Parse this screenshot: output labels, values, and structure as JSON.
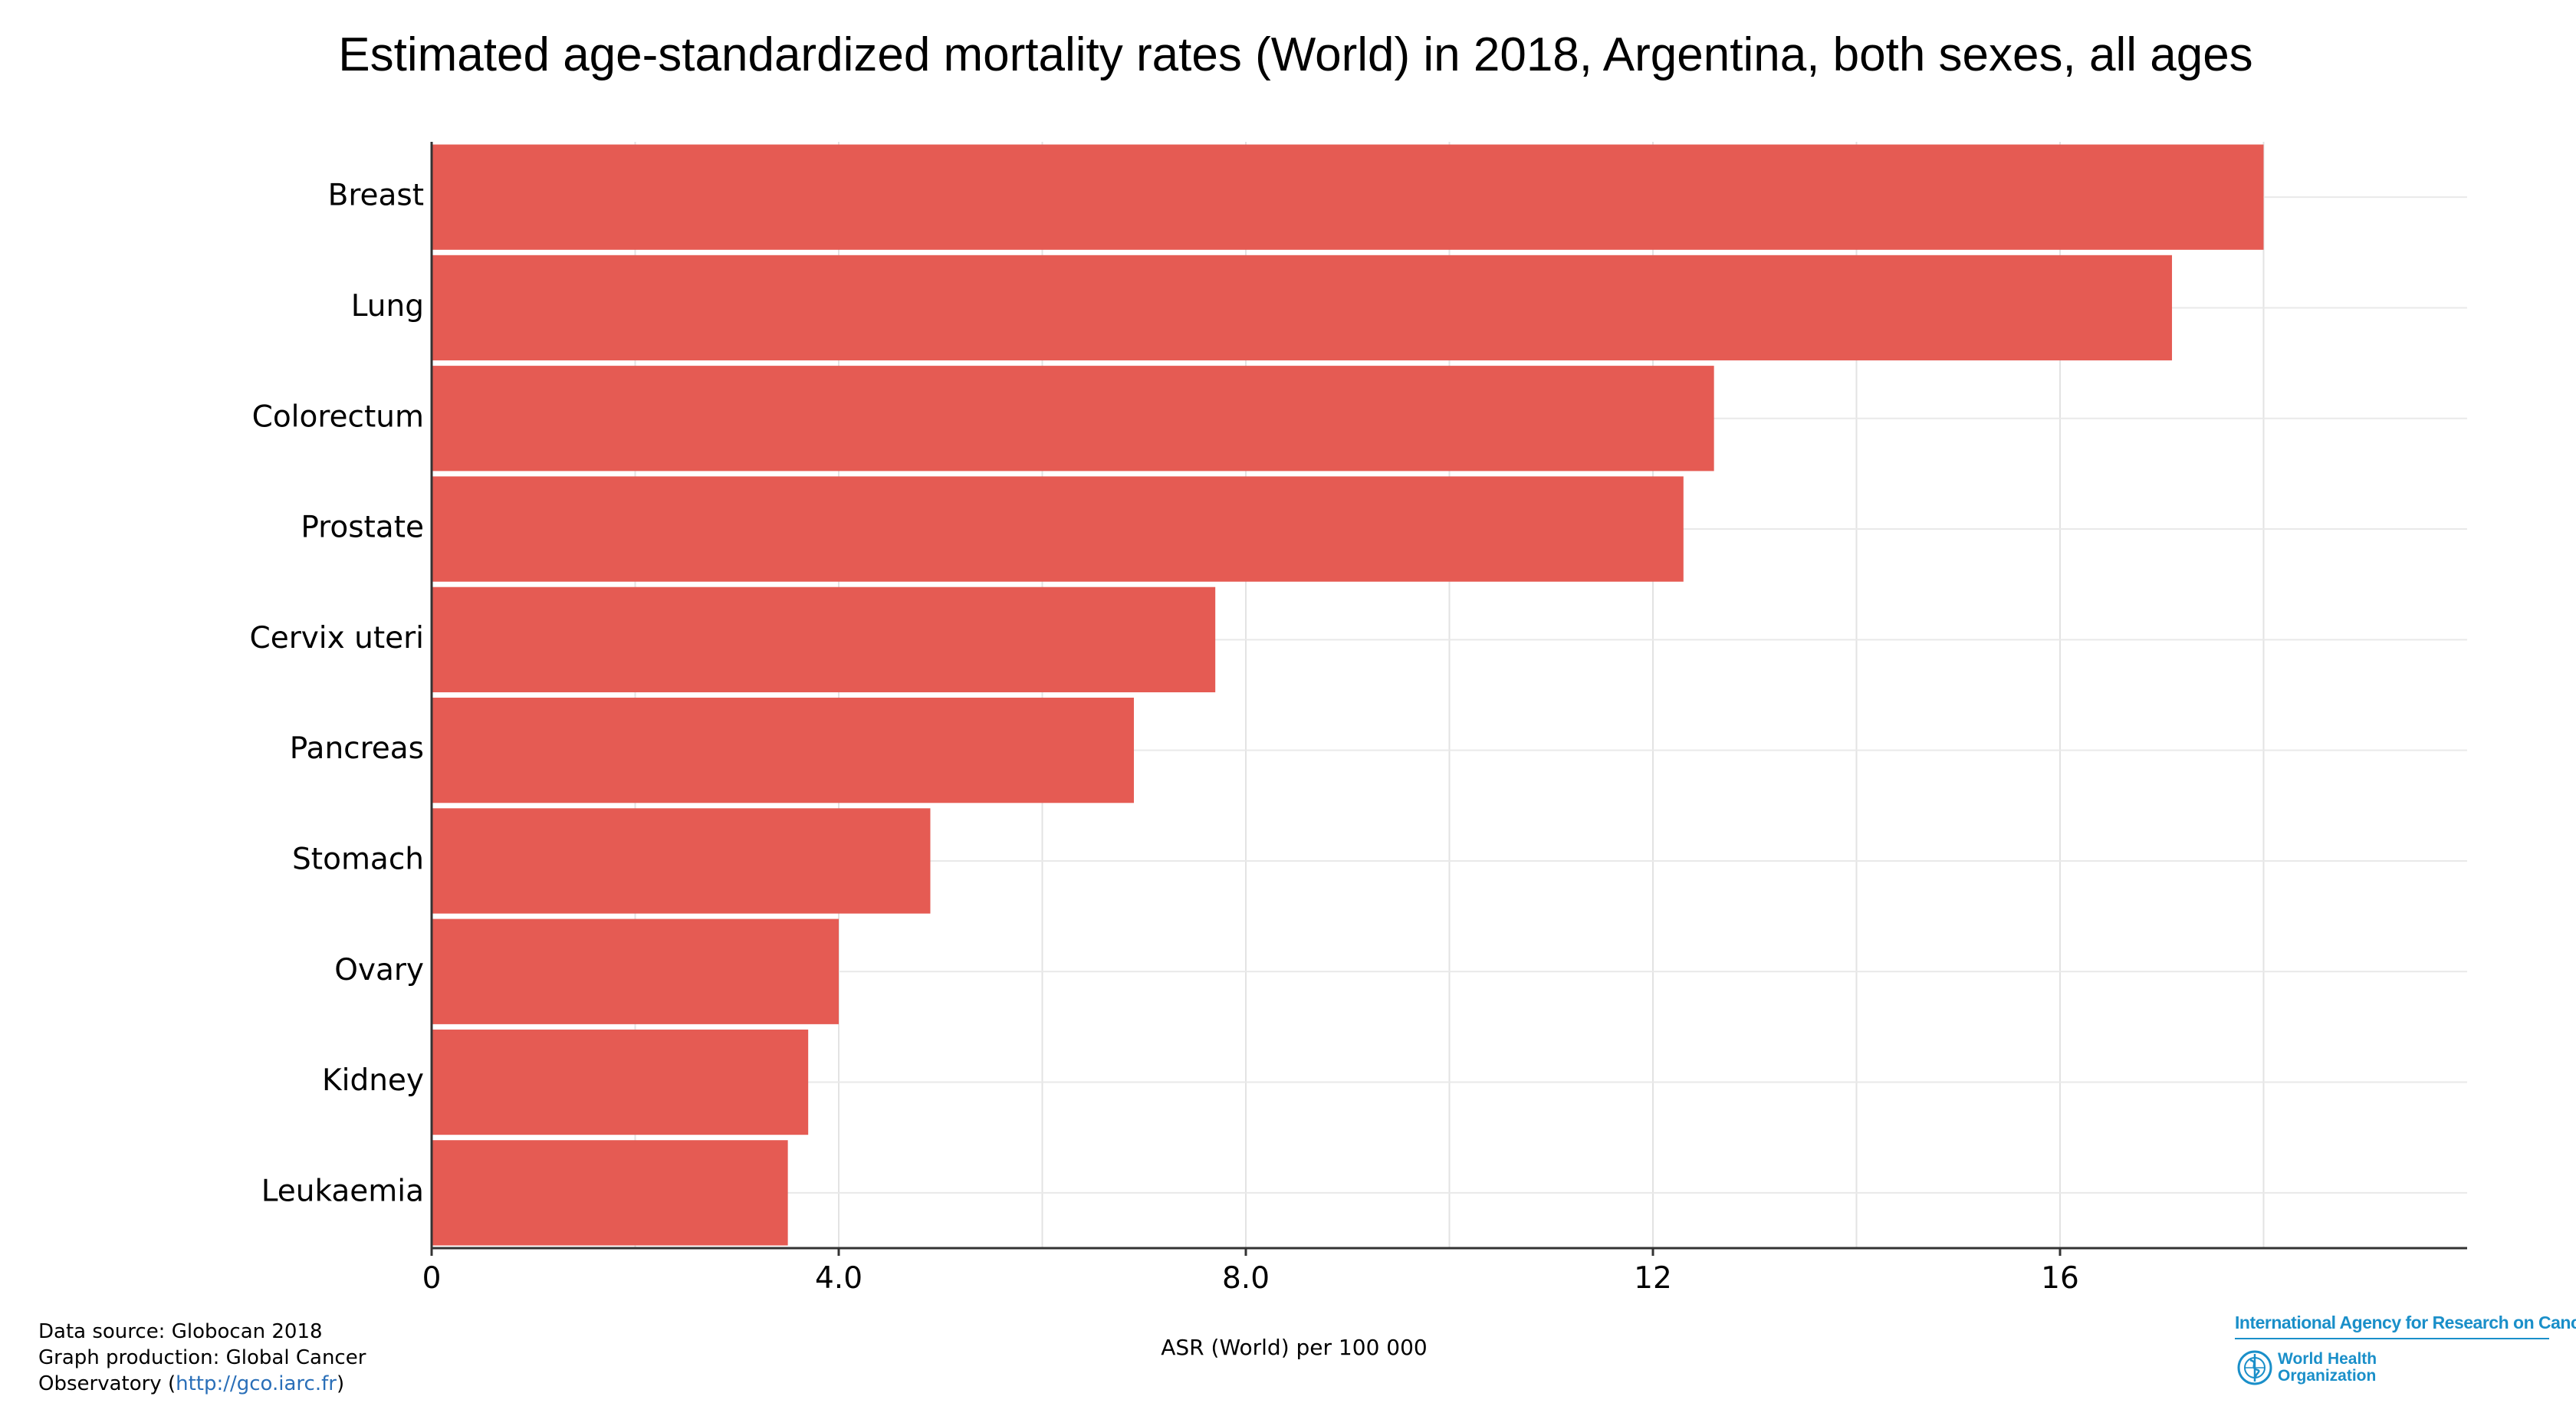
{
  "chart_data": {
    "type": "bar",
    "orientation": "horizontal",
    "title": "Estimated age-standardized mortality rates (World) in 2018, Argentina, both sexes, all ages",
    "xlabel": "ASR (World) per 100 000",
    "ylabel": "",
    "categories": [
      "Breast",
      "Lung",
      "Colorectum",
      "Prostate",
      "Cervix uteri",
      "Pancreas",
      "Stomach",
      "Ovary",
      "Kidney",
      "Leukaemia"
    ],
    "values": [
      18.0,
      17.1,
      12.6,
      12.3,
      7.7,
      6.9,
      4.9,
      4.0,
      3.7,
      3.5
    ],
    "xlim": [
      0,
      20
    ],
    "xticks": [
      {
        "value": 0,
        "label": "0"
      },
      {
        "value": 4,
        "label": "4.0"
      },
      {
        "value": 8,
        "label": "8.0"
      },
      {
        "value": 12,
        "label": "12"
      },
      {
        "value": 16,
        "label": "16"
      }
    ],
    "bar_color": "#e55b53",
    "grid": true,
    "legend": "none"
  },
  "footer": {
    "source_line1": "Data source: Globocan 2018",
    "source_line2": "Graph production: Global Cancer",
    "source_line3_prefix": "Observatory (",
    "source_link": "http://gco.iarc.fr",
    "source_line3_suffix": ")"
  },
  "logo": {
    "agency": "International Agency for Research on Cancer",
    "who_line1": "World Health",
    "who_line2": "Organization",
    "accent_color": "#1a8fc9"
  }
}
